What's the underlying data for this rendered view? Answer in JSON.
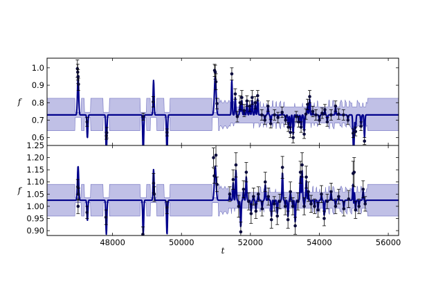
{
  "chart_data": [
    {
      "type": "line",
      "panel": "top",
      "ylabel": "f",
      "xlim": [
        46100,
        56300
      ],
      "ylim": [
        0.555,
        1.055
      ],
      "yticks": [
        0.6,
        0.7,
        0.8,
        0.9,
        1.0
      ],
      "ytick_labels": [
        "0.6",
        "0.7",
        "0.8",
        "0.9",
        "1.0"
      ],
      "grid": false,
      "colors": {
        "model": "#00008b",
        "band": "#8c8cd2",
        "points": "#0a0a3c",
        "errorbars": "#000000"
      },
      "model_mean": 0.73,
      "band": {
        "default": [
          0.64,
          0.825
        ]
      },
      "points": [
        {
          "x": 46980,
          "y": 0.995,
          "err": 0.05
        },
        {
          "x": 46990,
          "y": 0.975,
          "err": 0.045
        },
        {
          "x": 47000,
          "y": 0.95,
          "err": 0.04
        },
        {
          "x": 47010,
          "y": 0.905,
          "err": 0.035
        },
        {
          "x": 47260,
          "y": 0.69,
          "err": 0.025
        },
        {
          "x": 47820,
          "y": 0.61,
          "err": 0.02
        },
        {
          "x": 47830,
          "y": 0.628,
          "err": 0.03
        },
        {
          "x": 48890,
          "y": 0.72,
          "err": 0.02
        },
        {
          "x": 49180,
          "y": 0.805,
          "err": 0.03
        },
        {
          "x": 49580,
          "y": 0.63,
          "err": 0.02
        },
        {
          "x": 50960,
          "y": 0.985,
          "err": 0.035
        },
        {
          "x": 50980,
          "y": 0.975,
          "err": 0.04
        },
        {
          "x": 51000,
          "y": 0.92,
          "err": 0.045
        },
        {
          "x": 51030,
          "y": 0.795,
          "err": 0.03
        },
        {
          "x": 51460,
          "y": 0.965,
          "err": 0.035
        },
        {
          "x": 51560,
          "y": 0.85,
          "err": 0.03
        },
        {
          "x": 51620,
          "y": 0.72,
          "err": 0.03
        },
        {
          "x": 51700,
          "y": 0.8,
          "err": 0.04
        },
        {
          "x": 51750,
          "y": 0.83,
          "err": 0.04
        },
        {
          "x": 51820,
          "y": 0.755,
          "err": 0.035
        },
        {
          "x": 51900,
          "y": 0.81,
          "err": 0.03
        },
        {
          "x": 51980,
          "y": 0.78,
          "err": 0.03
        },
        {
          "x": 52050,
          "y": 0.83,
          "err": 0.04
        },
        {
          "x": 52140,
          "y": 0.8,
          "err": 0.035
        },
        {
          "x": 52210,
          "y": 0.84,
          "err": 0.03
        },
        {
          "x": 52330,
          "y": 0.73,
          "err": 0.03
        },
        {
          "x": 52420,
          "y": 0.7,
          "err": 0.025
        },
        {
          "x": 52510,
          "y": 0.78,
          "err": 0.03
        },
        {
          "x": 52590,
          "y": 0.68,
          "err": 0.025
        },
        {
          "x": 52700,
          "y": 0.73,
          "err": 0.03
        },
        {
          "x": 52800,
          "y": 0.715,
          "err": 0.03
        },
        {
          "x": 52920,
          "y": 0.745,
          "err": 0.03
        },
        {
          "x": 53020,
          "y": 0.7,
          "err": 0.025
        },
        {
          "x": 53100,
          "y": 0.66,
          "err": 0.025
        },
        {
          "x": 53160,
          "y": 0.63,
          "err": 0.03
        },
        {
          "x": 53240,
          "y": 0.6,
          "err": 0.03
        },
        {
          "x": 53330,
          "y": 0.72,
          "err": 0.03
        },
        {
          "x": 53400,
          "y": 0.69,
          "err": 0.03
        },
        {
          "x": 53470,
          "y": 0.66,
          "err": 0.03
        },
        {
          "x": 53560,
          "y": 0.62,
          "err": 0.025
        },
        {
          "x": 53610,
          "y": 0.735,
          "err": 0.03
        },
        {
          "x": 53660,
          "y": 0.79,
          "err": 0.03
        },
        {
          "x": 53720,
          "y": 0.835,
          "err": 0.035
        },
        {
          "x": 53810,
          "y": 0.75,
          "err": 0.03
        },
        {
          "x": 53900,
          "y": 0.73,
          "err": 0.03
        },
        {
          "x": 54000,
          "y": 0.7,
          "err": 0.025
        },
        {
          "x": 54080,
          "y": 0.74,
          "err": 0.03
        },
        {
          "x": 54160,
          "y": 0.76,
          "err": 0.03
        },
        {
          "x": 54230,
          "y": 0.69,
          "err": 0.025
        },
        {
          "x": 54340,
          "y": 0.73,
          "err": 0.03
        },
        {
          "x": 54470,
          "y": 0.78,
          "err": 0.03
        },
        {
          "x": 54560,
          "y": 0.735,
          "err": 0.03
        },
        {
          "x": 54700,
          "y": 0.73,
          "err": 0.03
        },
        {
          "x": 54830,
          "y": 0.7,
          "err": 0.025
        },
        {
          "x": 54980,
          "y": 0.625,
          "err": 0.025
        },
        {
          "x": 55050,
          "y": 0.635,
          "err": 0.025
        },
        {
          "x": 55210,
          "y": 0.665,
          "err": 0.025
        },
        {
          "x": 55310,
          "y": 0.58,
          "err": 0.02
        }
      ]
    },
    {
      "type": "line",
      "panel": "bottom",
      "ylabel": "f",
      "xlabel": "t",
      "xlim": [
        46100,
        56300
      ],
      "ylim": [
        0.88,
        1.25
      ],
      "xticks": [
        48000,
        50000,
        52000,
        54000,
        56000
      ],
      "xtick_labels": [
        "48000",
        "50000",
        "52000",
        "54000",
        "56000"
      ],
      "yticks": [
        0.9,
        0.95,
        1.0,
        1.05,
        1.1,
        1.15,
        1.2,
        1.25
      ],
      "ytick_labels": [
        "0.90",
        "0.95",
        "1.00",
        "1.05",
        "1.10",
        "1.15",
        "1.20",
        "1.25"
      ],
      "grid": false,
      "colors": {
        "model": "#00008b",
        "band": "#8c8cd2",
        "points": "#0a0a3c",
        "errorbars": "#000000"
      },
      "model_mean": 1.025,
      "band": {
        "default": [
          0.96,
          1.09
        ]
      },
      "points": [
        {
          "x": 46990,
          "y": 1.08,
          "err": 0.03
        },
        {
          "x": 47000,
          "y": 1.0,
          "err": 0.03
        },
        {
          "x": 47010,
          "y": 1.05,
          "err": 0.025
        },
        {
          "x": 47260,
          "y": 0.975,
          "err": 0.025
        },
        {
          "x": 47810,
          "y": 0.955,
          "err": 0.03
        },
        {
          "x": 48880,
          "y": 0.885,
          "err": 0.03
        },
        {
          "x": 49190,
          "y": 1.095,
          "err": 0.04
        },
        {
          "x": 49210,
          "y": 1.05,
          "err": 0.03
        },
        {
          "x": 49580,
          "y": 0.995,
          "err": 0.025
        },
        {
          "x": 50930,
          "y": 1.2,
          "err": 0.04
        },
        {
          "x": 50950,
          "y": 1.125,
          "err": 0.03
        },
        {
          "x": 51000,
          "y": 1.21,
          "err": 0.045
        },
        {
          "x": 51030,
          "y": 1.09,
          "err": 0.03
        },
        {
          "x": 51400,
          "y": 1.05,
          "err": 0.03
        },
        {
          "x": 51500,
          "y": 1.11,
          "err": 0.04
        },
        {
          "x": 51580,
          "y": 1.17,
          "err": 0.05
        },
        {
          "x": 51660,
          "y": 1.0,
          "err": 0.045
        },
        {
          "x": 51720,
          "y": 0.895,
          "err": 0.04
        },
        {
          "x": 51800,
          "y": 1.07,
          "err": 0.035
        },
        {
          "x": 51880,
          "y": 1.14,
          "err": 0.04
        },
        {
          "x": 51950,
          "y": 1.02,
          "err": 0.035
        },
        {
          "x": 52020,
          "y": 0.97,
          "err": 0.04
        },
        {
          "x": 52090,
          "y": 1.04,
          "err": 0.035
        },
        {
          "x": 52160,
          "y": 0.98,
          "err": 0.03
        },
        {
          "x": 52230,
          "y": 1.05,
          "err": 0.03
        },
        {
          "x": 52340,
          "y": 0.99,
          "err": 0.03
        },
        {
          "x": 52430,
          "y": 1.1,
          "err": 0.04
        },
        {
          "x": 52520,
          "y": 1.04,
          "err": 0.035
        },
        {
          "x": 52610,
          "y": 0.945,
          "err": 0.035
        },
        {
          "x": 52690,
          "y": 1.01,
          "err": 0.03
        },
        {
          "x": 52780,
          "y": 0.96,
          "err": 0.035
        },
        {
          "x": 52850,
          "y": 1.02,
          "err": 0.03
        },
        {
          "x": 52930,
          "y": 1.16,
          "err": 0.045
        },
        {
          "x": 53010,
          "y": 1.0,
          "err": 0.035
        },
        {
          "x": 53090,
          "y": 0.945,
          "err": 0.035
        },
        {
          "x": 53160,
          "y": 1.06,
          "err": 0.04
        },
        {
          "x": 53230,
          "y": 1.0,
          "err": 0.035
        },
        {
          "x": 53300,
          "y": 0.92,
          "err": 0.035
        },
        {
          "x": 53380,
          "y": 1.02,
          "err": 0.035
        },
        {
          "x": 53450,
          "y": 1.14,
          "err": 0.045
        },
        {
          "x": 53500,
          "y": 1.17,
          "err": 0.05
        },
        {
          "x": 53560,
          "y": 1.0,
          "err": 0.035
        },
        {
          "x": 53620,
          "y": 1.12,
          "err": 0.045
        },
        {
          "x": 53680,
          "y": 1.06,
          "err": 0.04
        },
        {
          "x": 53760,
          "y": 1.01,
          "err": 0.035
        },
        {
          "x": 53860,
          "y": 1.0,
          "err": 0.03
        },
        {
          "x": 53960,
          "y": 0.985,
          "err": 0.03
        },
        {
          "x": 54060,
          "y": 1.05,
          "err": 0.035
        },
        {
          "x": 54140,
          "y": 0.95,
          "err": 0.03
        },
        {
          "x": 54230,
          "y": 1.02,
          "err": 0.03
        },
        {
          "x": 54340,
          "y": 1.06,
          "err": 0.035
        },
        {
          "x": 54470,
          "y": 1.0,
          "err": 0.03
        },
        {
          "x": 54560,
          "y": 1.04,
          "err": 0.03
        },
        {
          "x": 54710,
          "y": 0.99,
          "err": 0.03
        },
        {
          "x": 54850,
          "y": 1.03,
          "err": 0.035
        },
        {
          "x": 54980,
          "y": 1.135,
          "err": 0.05
        },
        {
          "x": 55010,
          "y": 1.14,
          "err": 0.06
        },
        {
          "x": 55050,
          "y": 0.985,
          "err": 0.035
        },
        {
          "x": 55150,
          "y": 1.0,
          "err": 0.03
        },
        {
          "x": 55270,
          "y": 1.07,
          "err": 0.035
        },
        {
          "x": 55330,
          "y": 1.01,
          "err": 0.03
        }
      ]
    }
  ]
}
